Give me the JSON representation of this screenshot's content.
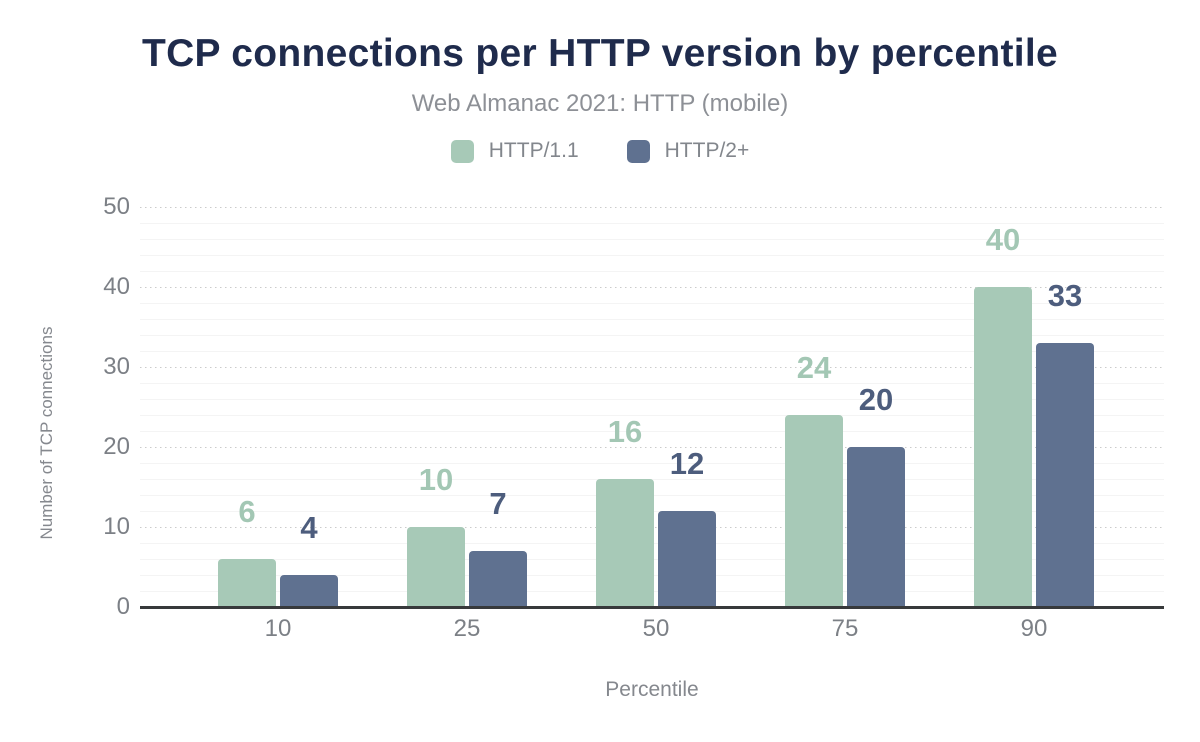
{
  "title": "TCP connections per HTTP version by percentile",
  "subtitle": "Web Almanac 2021: HTTP (mobile)",
  "legend": [
    {
      "label": "HTTP/1.1",
      "color": "#a7c9b7"
    },
    {
      "label": "HTTP/2+",
      "color": "#5f7190"
    }
  ],
  "axes": {
    "ylabel": "Number of TCP connections",
    "xlabel": "Percentile"
  },
  "chart_data": {
    "type": "bar",
    "title": "TCP connections per HTTP version by percentile",
    "subtitle": "Web Almanac 2021: HTTP (mobile)",
    "categories": [
      "10",
      "25",
      "50",
      "75",
      "90"
    ],
    "series": [
      {
        "name": "HTTP/1.1",
        "color": "#a7c9b7",
        "label_color": "#a3c7b4",
        "values": [
          6,
          10,
          16,
          24,
          40
        ]
      },
      {
        "name": "HTTP/2+",
        "color": "#5f7190",
        "label_color": "#4d5d7d",
        "values": [
          4,
          7,
          12,
          20,
          33
        ]
      }
    ],
    "xlabel": "Percentile",
    "ylabel": "Number of TCP connections",
    "ylim": [
      0,
      50
    ],
    "yticks": [
      0,
      10,
      20,
      30,
      40,
      50
    ],
    "minor_grid_step": 2,
    "grid": "major dotted at labeled ticks, faint minor lines every 2 units",
    "legend_position": "top",
    "bar_labels_shown": true
  },
  "colors": {
    "title_text": "#1f2b4c",
    "subtitle_text": "#8d9096",
    "axis_tick_text": "#7c8086",
    "axis_title_text": "#85888e",
    "axis_line": "#37393b",
    "grid_major": "#cbcbcb",
    "grid_minor": "#f4f4f4",
    "background": "#ffffff"
  }
}
